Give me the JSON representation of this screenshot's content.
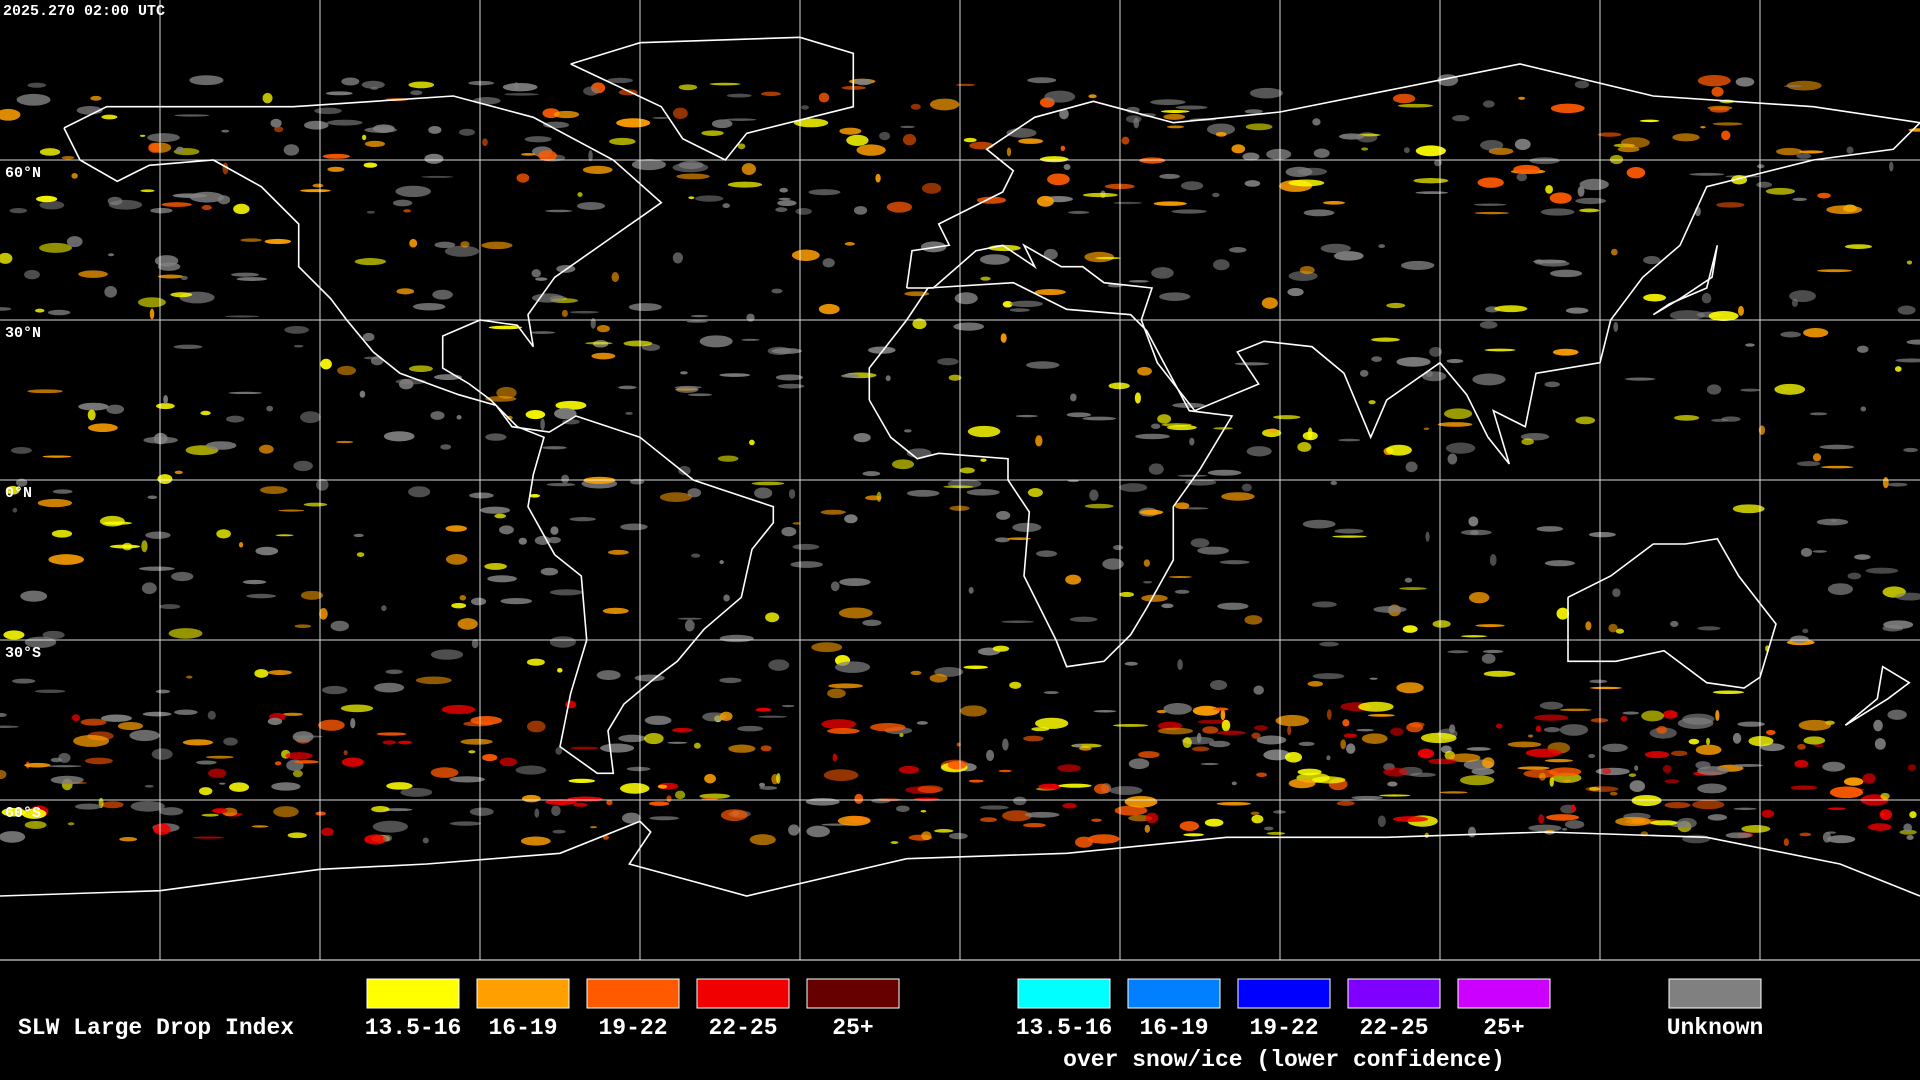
{
  "timestamp": "2025.270 02:00 UTC",
  "latitude_labels": [
    "60°N",
    "30°N",
    "0°N",
    "30°S",
    "60°S"
  ],
  "legend": {
    "title": "SLW Large Drop Index",
    "primary": [
      {
        "label": "13.5-16",
        "color": "#ffff00"
      },
      {
        "label": "16-19",
        "color": "#ffa000"
      },
      {
        "label": "19-22",
        "color": "#ff5a00"
      },
      {
        "label": "22-25",
        "color": "#f00000"
      },
      {
        "label": "25+",
        "color": "#660000"
      }
    ],
    "snow_ice": [
      {
        "label": "13.5-16",
        "color": "#00ffff"
      },
      {
        "label": "16-19",
        "color": "#0080ff"
      },
      {
        "label": "19-22",
        "color": "#0000ff"
      },
      {
        "label": "22-25",
        "color": "#8000ff"
      },
      {
        "label": "25+",
        "color": "#cc00ff"
      }
    ],
    "snow_ice_caption": "over snow/ice (lower confidence)",
    "unknown": {
      "label": "Unknown",
      "color": "#808080"
    }
  }
}
